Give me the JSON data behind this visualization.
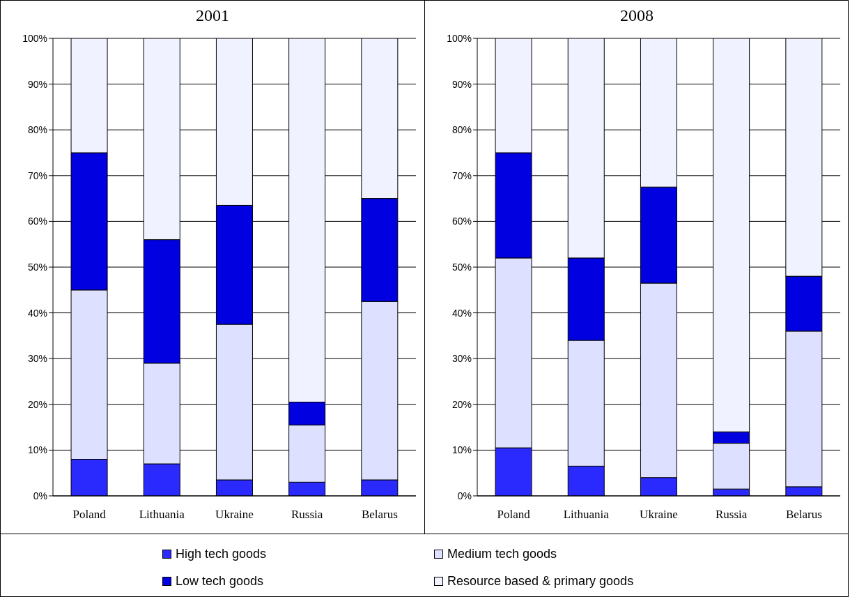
{
  "chart_data": [
    {
      "type": "bar",
      "title": "2001",
      "stacked": true,
      "categories": [
        "Poland",
        "Lithuania",
        "Ukraine",
        "Russia",
        "Belarus"
      ],
      "ylim": [
        0,
        100
      ],
      "yticks": [
        {
          "value": 0,
          "label": "0%"
        },
        {
          "value": 10,
          "label": "10%"
        },
        {
          "value": 20,
          "label": "20%"
        },
        {
          "value": 30,
          "label": "30%"
        },
        {
          "value": 40,
          "label": "40%"
        },
        {
          "value": 50,
          "label": "50%"
        },
        {
          "value": 60,
          "label": "60%"
        },
        {
          "value": 70,
          "label": "70%"
        },
        {
          "value": 80,
          "label": "80%"
        },
        {
          "value": 90,
          "label": "90%"
        },
        {
          "value": 100,
          "label": "100%"
        }
      ],
      "grid": "y",
      "legend": "bottom",
      "series": [
        {
          "name": "High tech goods",
          "color": "#2a2aff",
          "values": [
            8,
            7,
            3.5,
            3,
            3.5
          ]
        },
        {
          "name": "Medium tech goods",
          "color": "#dde0ff",
          "values": [
            37,
            22,
            34,
            12.5,
            39
          ]
        },
        {
          "name": "Low tech goods",
          "color": "#0000e0",
          "values": [
            30,
            27,
            26,
            5,
            22.5
          ]
        },
        {
          "name": "Resource based & primary goods",
          "color": "#f0f2ff",
          "values": [
            25,
            44,
            36.5,
            79.5,
            35
          ]
        }
      ]
    },
    {
      "type": "bar",
      "title": "2008",
      "stacked": true,
      "categories": [
        "Poland",
        "Lithuania",
        "Ukraine",
        "Russia",
        "Belarus"
      ],
      "ylim": [
        0,
        100
      ],
      "yticks": [
        {
          "value": 0,
          "label": "0%"
        },
        {
          "value": 10,
          "label": "10%"
        },
        {
          "value": 20,
          "label": "20%"
        },
        {
          "value": 30,
          "label": "30%"
        },
        {
          "value": 40,
          "label": "40%"
        },
        {
          "value": 50,
          "label": "50%"
        },
        {
          "value": 60,
          "label": "60%"
        },
        {
          "value": 70,
          "label": "70%"
        },
        {
          "value": 80,
          "label": "80%"
        },
        {
          "value": 90,
          "label": "90%"
        },
        {
          "value": 100,
          "label": "100%"
        }
      ],
      "grid": "y",
      "series": [
        {
          "color": "#2a2aff",
          "values": [
            10.5,
            6.5,
            4,
            1.5,
            2
          ]
        },
        {
          "color": "#dde0ff",
          "values": [
            41.5,
            27.5,
            42.5,
            10,
            34
          ]
        },
        {
          "color": "#0000e0",
          "values": [
            23,
            18,
            21,
            2.5,
            12
          ]
        },
        {
          "color": "#f0f2ff",
          "values": [
            25,
            48,
            32.5,
            86,
            52
          ]
        }
      ]
    }
  ]
}
